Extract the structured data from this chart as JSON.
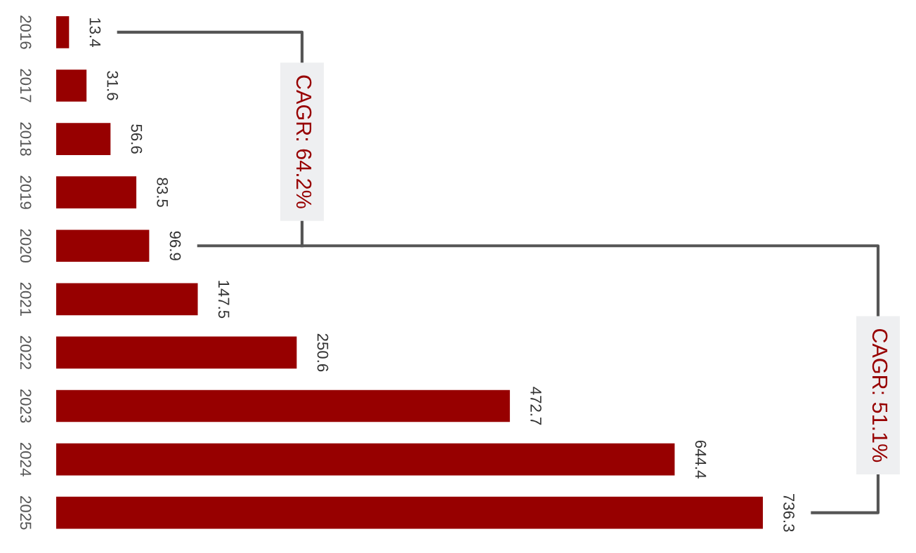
{
  "chart_data": {
    "type": "bar",
    "orientation": "horizontal",
    "categories": [
      "2016",
      "2017",
      "2018",
      "2019",
      "2020",
      "2021",
      "2022",
      "2023",
      "2024",
      "2025"
    ],
    "values": [
      13.4,
      31.6,
      56.6,
      83.5,
      96.9,
      147.5,
      250.6,
      472.7,
      644.4,
      736.3
    ],
    "color": "#970000",
    "data_labels": true,
    "annotations": [
      "CAGR: 64.2%",
      "CAGR: 51.1%"
    ]
  }
}
